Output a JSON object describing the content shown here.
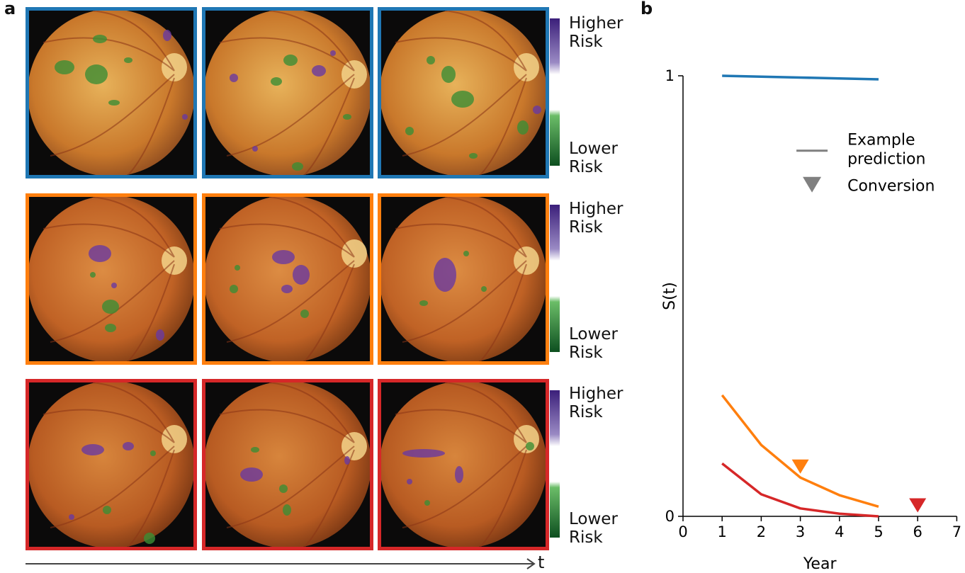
{
  "panel_a": {
    "letter": "a",
    "rows": [
      {
        "color": "#1f77b4",
        "colorbar_high": "Higher\nRisk",
        "colorbar_low": "Lower\nRisk"
      },
      {
        "color": "#ff7f0e",
        "colorbar_high": "Higher\nRisk",
        "colorbar_low": "Lower\nRisk"
      },
      {
        "color": "#d62728",
        "colorbar_high": "Higher\nRisk",
        "colorbar_low": "Lower\nRisk"
      }
    ],
    "time_axis_label": "t"
  },
  "panel_b": {
    "letter": "b"
  },
  "chart_data": {
    "type": "line",
    "xlabel": "Year",
    "ylabel": "S(t)",
    "xlim": [
      0,
      7
    ],
    "ylim": [
      0,
      1
    ],
    "xticks": [
      "0",
      "1",
      "2",
      "3",
      "4",
      "5",
      "6",
      "7"
    ],
    "yticks": [
      "0",
      "1"
    ],
    "legend": {
      "line_label": "Example\nprediction",
      "marker_label": "Conversion",
      "placement": "right"
    },
    "series": [
      {
        "color": "#1f77b4",
        "x": [
          1,
          2,
          3,
          4,
          5
        ],
        "y": [
          1.0,
          0.998,
          0.996,
          0.994,
          0.992
        ]
      },
      {
        "color": "#ff7f0e",
        "x": [
          1,
          2,
          3,
          4,
          5
        ],
        "y": [
          0.275,
          0.162,
          0.088,
          0.048,
          0.022
        ],
        "conversion_year": 3
      },
      {
        "color": "#d62728",
        "x": [
          1,
          2,
          3,
          4,
          5
        ],
        "y": [
          0.12,
          0.05,
          0.018,
          0.006,
          0.0
        ],
        "conversion_year": 6
      }
    ]
  }
}
